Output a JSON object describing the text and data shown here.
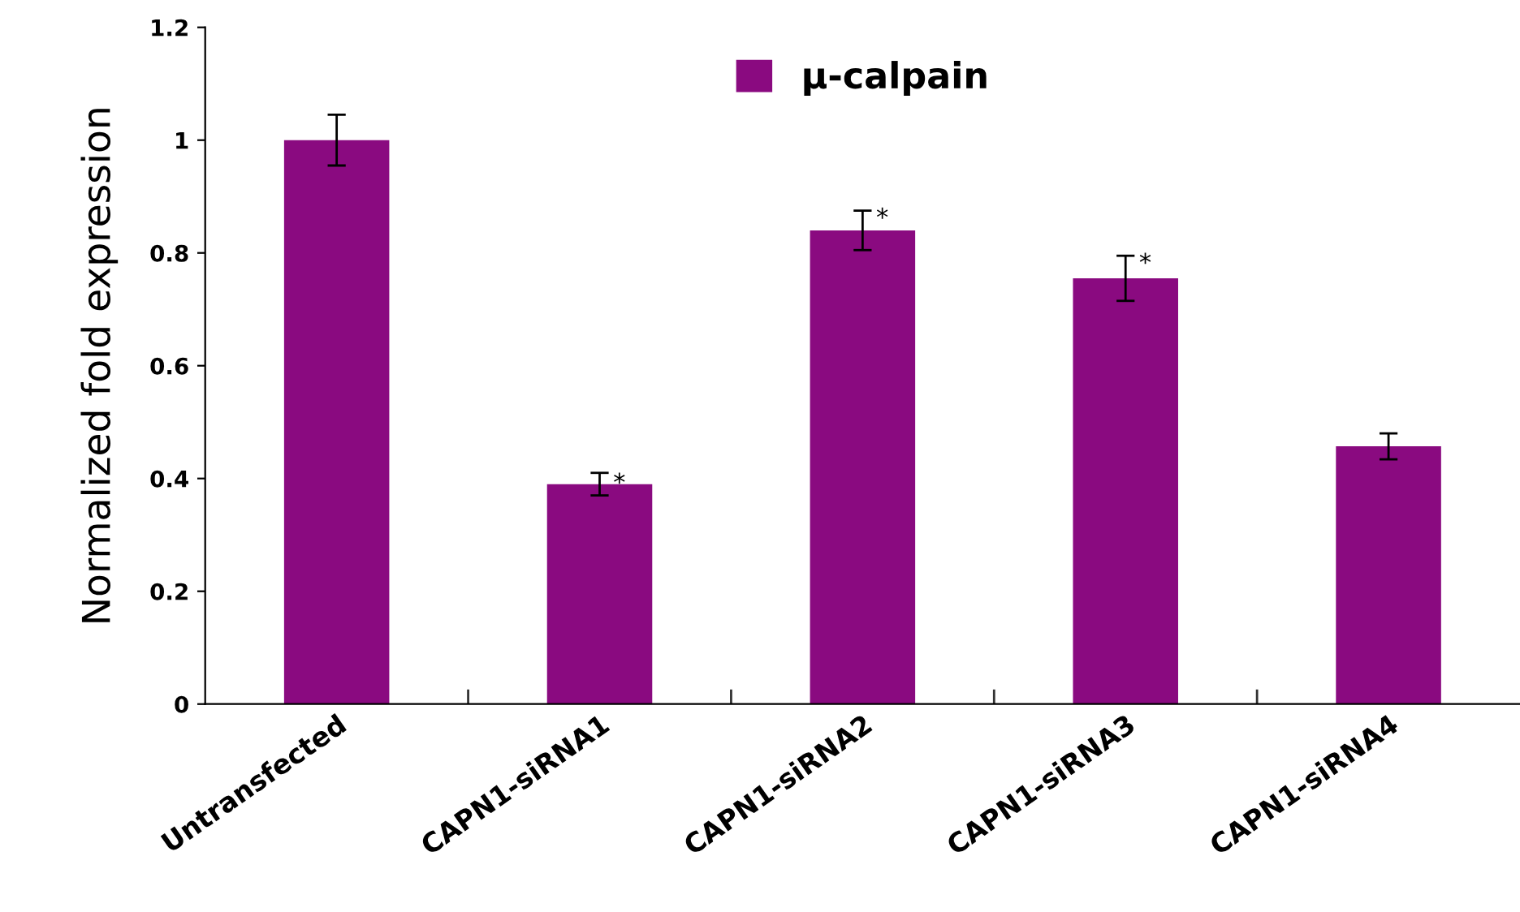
{
  "chart_data": {
    "type": "bar",
    "ylabel": "Normalized fold expression",
    "categories": [
      "Untransfected",
      "CAPN1-siRNA1",
      "CAPN1-siRNA2",
      "CAPN1-siRNA3",
      "CAPN1-siRNA4"
    ],
    "series": [
      {
        "name": "μ-calpain",
        "color": "#8a0a80",
        "values": [
          1.0,
          0.39,
          0.84,
          0.755,
          0.457
        ],
        "errors": [
          0.045,
          0.02,
          0.035,
          0.04,
          0.023
        ]
      }
    ],
    "ylim": [
      0,
      1.2
    ],
    "yticks": [
      0,
      0.2,
      0.4,
      0.6,
      0.8,
      1,
      1.2
    ],
    "grid": false,
    "legend": "top",
    "annotations": [
      {
        "text": "*",
        "x": "CAPN1-siRNA1",
        "y": 0.39
      },
      {
        "text": "*",
        "x": "CAPN1-siRNA2",
        "y": 0.86
      },
      {
        "text": "*",
        "x": "CAPN1-siRNA3",
        "y": 0.78
      }
    ]
  }
}
